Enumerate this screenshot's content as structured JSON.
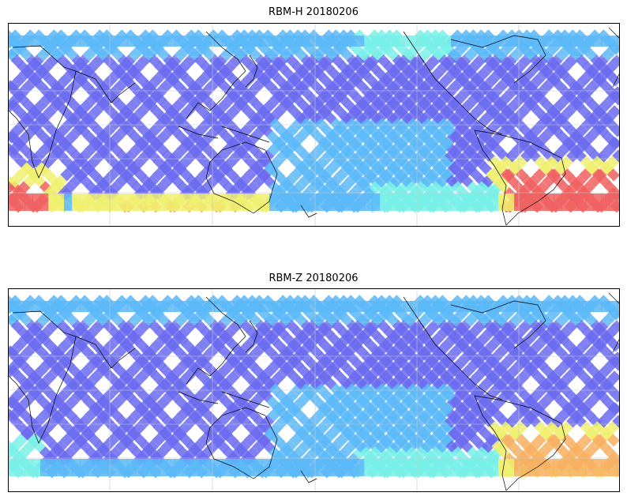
{
  "figure": {
    "panels": [
      {
        "id": "rbm-h",
        "title": "RBM-H 20180206",
        "variant": "h"
      },
      {
        "id": "rbm-z",
        "title": "RBM-Z 20180206",
        "variant": "z"
      }
    ]
  },
  "colors": {
    "track_low": "#6a6af0",
    "track_mid": "#5ab8f8",
    "track_cyan": "#78f0e8",
    "track_yellow": "#f0f070",
    "track_orange": "#f8b060",
    "track_red": "#f06060",
    "coast": "#000000",
    "grid": "#c8c8c8"
  },
  "map": {
    "projection": "equirectangular",
    "lat_range": [
      -70,
      70
    ],
    "lon_center_deg": 150,
    "gridlines": true
  }
}
